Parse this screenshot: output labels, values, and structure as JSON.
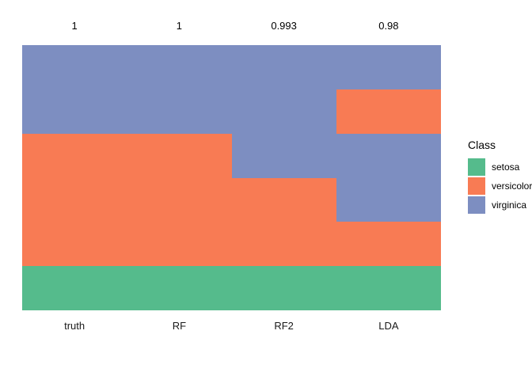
{
  "chart_data": {
    "type": "bar",
    "subtype": "stacked-categorical-composition",
    "categories": [
      "truth",
      "RF",
      "RF2",
      "LDA"
    ],
    "accuracy_labels": [
      "1",
      "1",
      "0.993",
      "0.98"
    ],
    "ylim": [
      0,
      1
    ],
    "grid": false,
    "legend_position": "right",
    "xlabel": "",
    "ylabel": "",
    "stack_order": "top-to-bottom",
    "columns": [
      {
        "name": "truth",
        "accuracy": "1",
        "segments": [
          {
            "class": "virginica",
            "fraction": 0.3333
          },
          {
            "class": "versicolor",
            "fraction": 0.5
          },
          {
            "class": "setosa",
            "fraction": 0.1667
          }
        ]
      },
      {
        "name": "RF",
        "accuracy": "1",
        "segments": [
          {
            "class": "virginica",
            "fraction": 0.3333
          },
          {
            "class": "versicolor",
            "fraction": 0.5
          },
          {
            "class": "setosa",
            "fraction": 0.1667
          }
        ]
      },
      {
        "name": "RF2",
        "accuracy": "0.993",
        "segments": [
          {
            "class": "virginica",
            "fraction": 0.5
          },
          {
            "class": "versicolor",
            "fraction": 0.3333
          },
          {
            "class": "setosa",
            "fraction": 0.1667
          }
        ]
      },
      {
        "name": "LDA",
        "accuracy": "0.98",
        "segments": [
          {
            "class": "virginica",
            "fraction": 0.1667
          },
          {
            "class": "versicolor",
            "fraction": 0.1667
          },
          {
            "class": "virginica",
            "fraction": 0.3333
          },
          {
            "class": "versicolor",
            "fraction": 0.1667
          },
          {
            "class": "setosa",
            "fraction": 0.1667
          }
        ]
      }
    ],
    "colors": {
      "setosa": "#55BB8C",
      "versicolor": "#F87B54",
      "virginica": "#7D8EC1"
    },
    "legend": {
      "title": "Class",
      "entries": [
        {
          "label": "setosa",
          "color": "#55BB8C"
        },
        {
          "label": "versicolor",
          "color": "#F87B54"
        },
        {
          "label": "virginica",
          "color": "#7D8EC1"
        }
      ]
    }
  }
}
